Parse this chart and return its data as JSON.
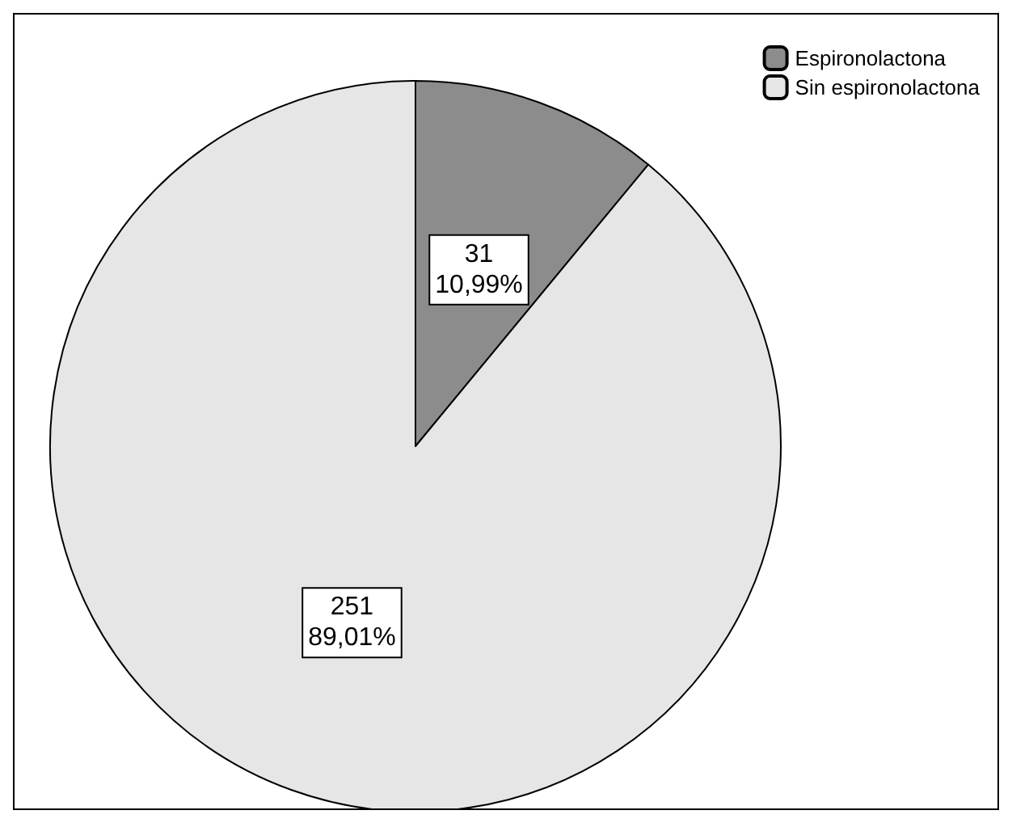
{
  "chart_data": {
    "type": "pie",
    "categories": [
      "Espironolactona",
      "Sin espironolactona"
    ],
    "values": [
      31,
      251
    ],
    "colors": [
      "#8c8c8c",
      "#e6e6e6"
    ],
    "value_labels": [
      "31\n10,99%",
      "251\n89,01%"
    ],
    "legend": "top right"
  }
}
